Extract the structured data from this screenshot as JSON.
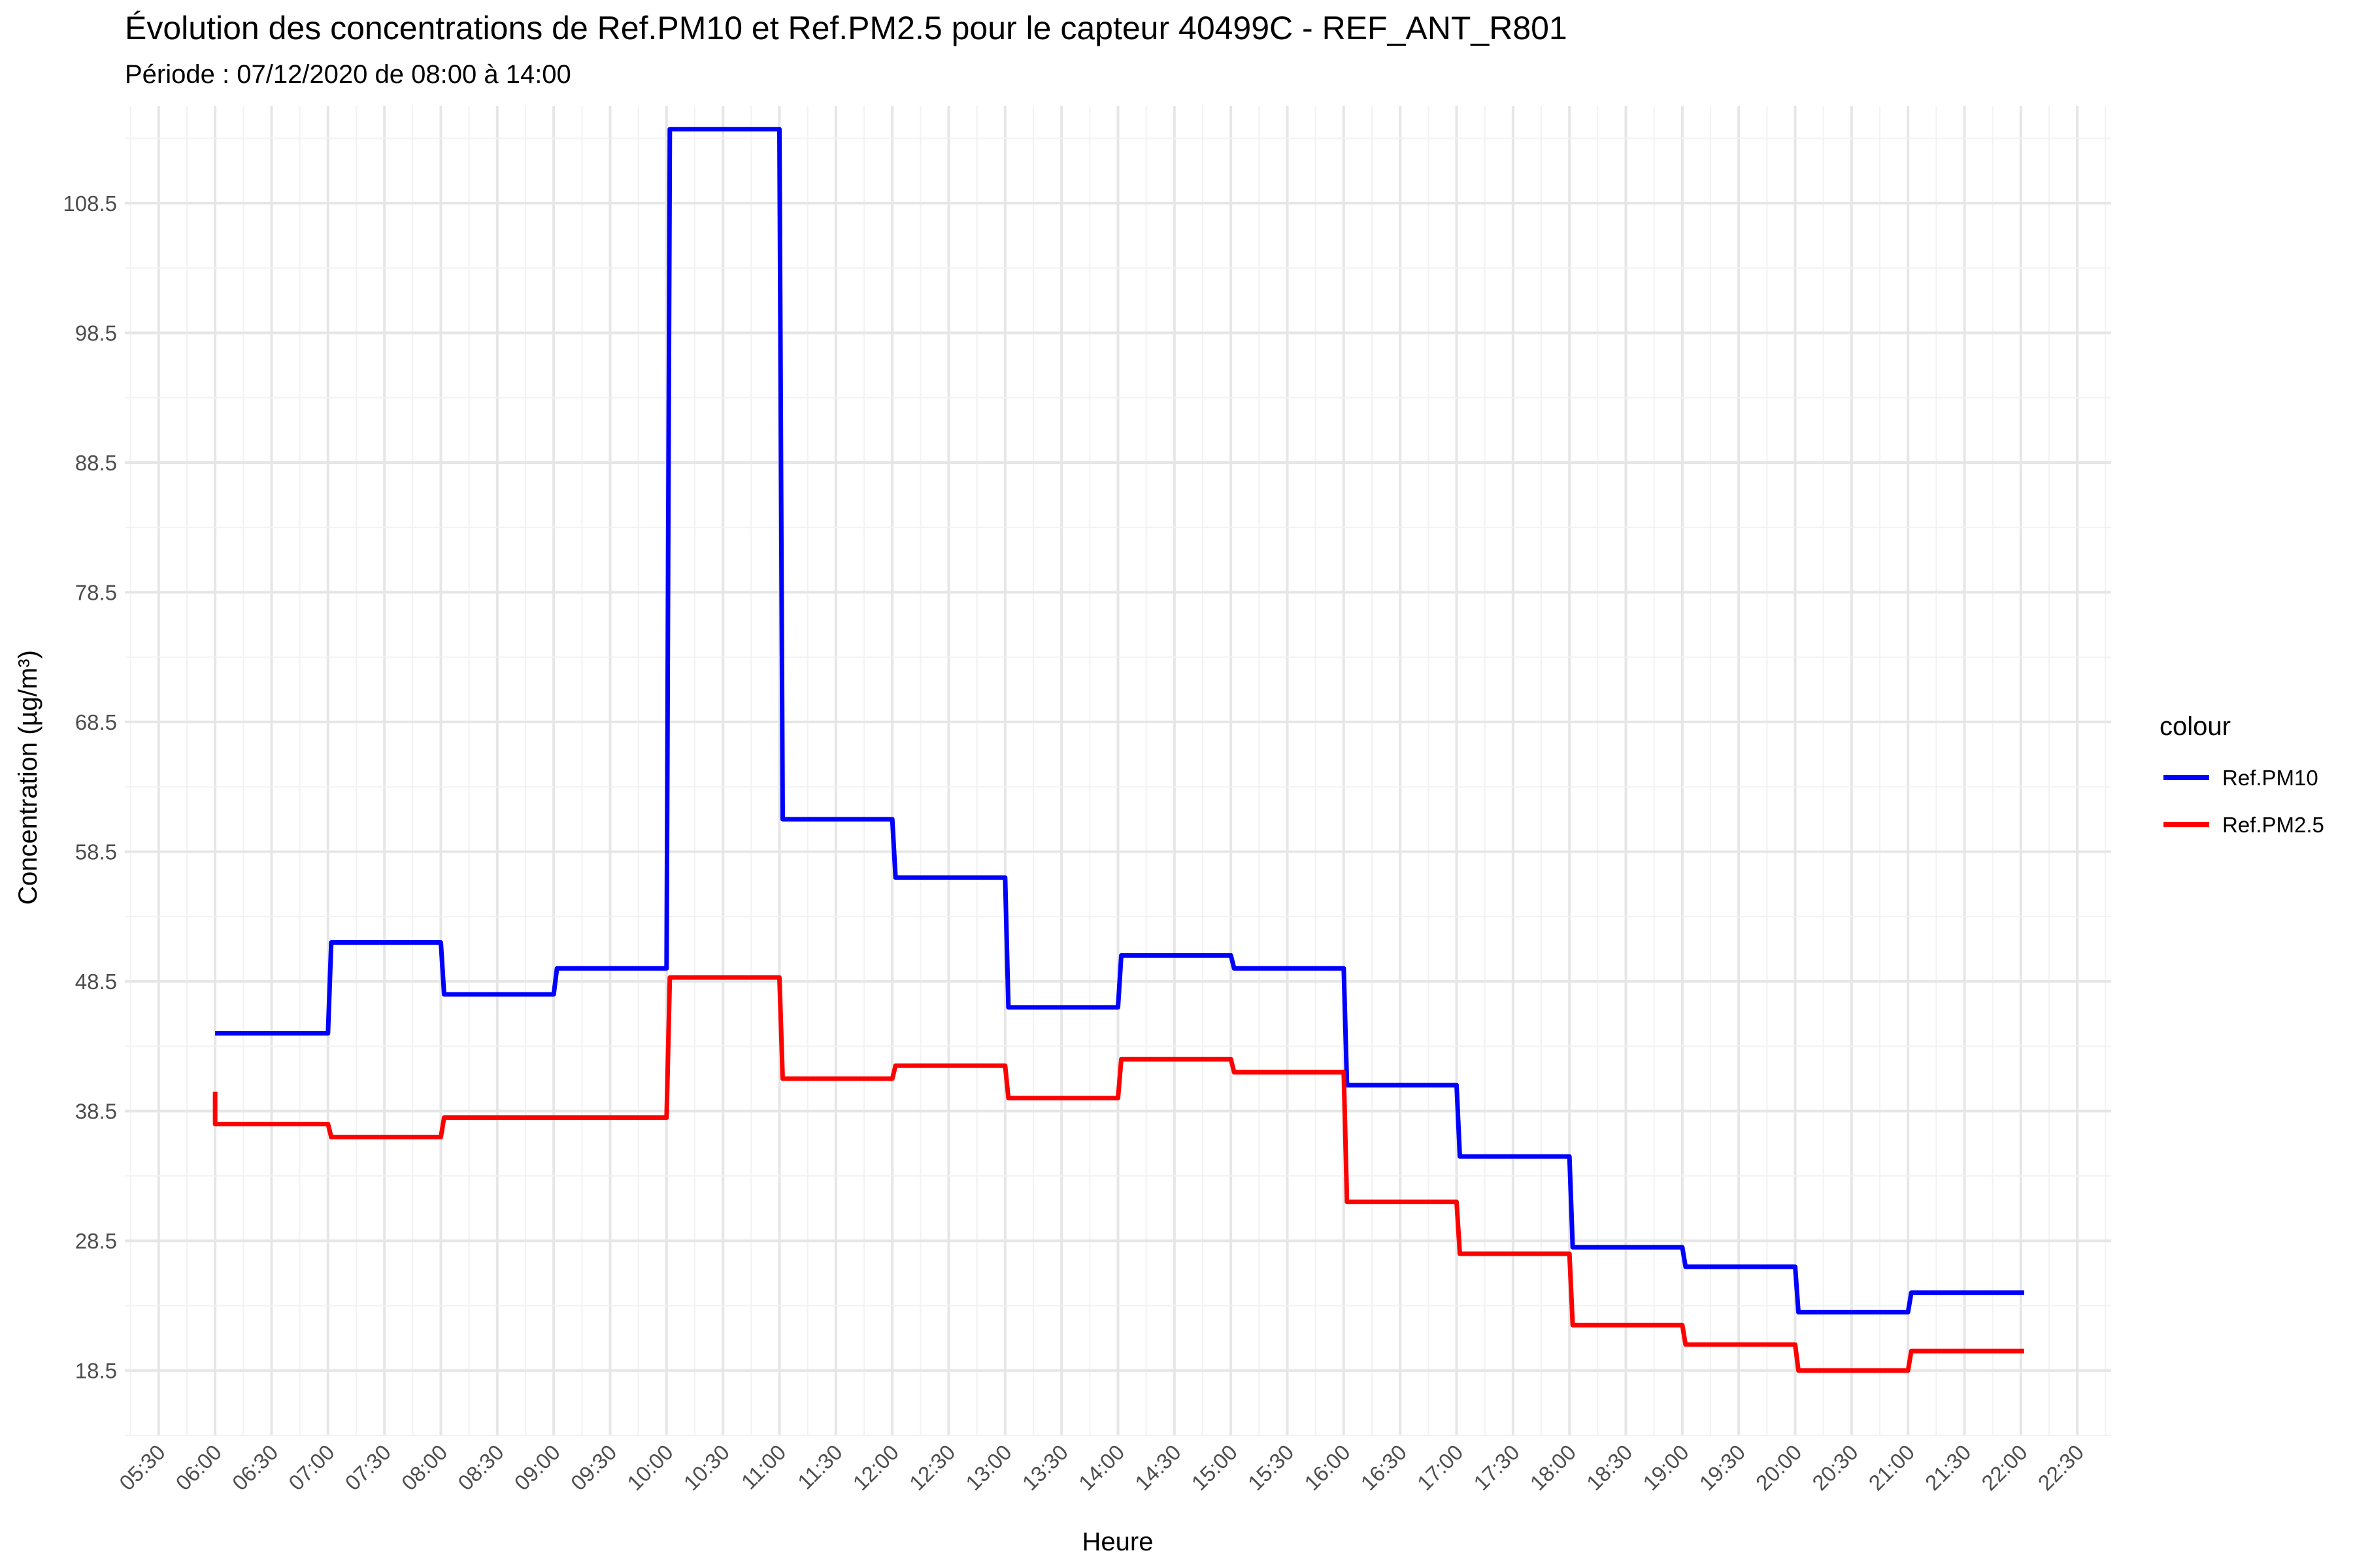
{
  "chart_data": {
    "type": "line",
    "step": true,
    "title": "Évolution des concentrations de Ref.PM10 et Ref.PM2.5 pour le capteur 40499C - REF_ANT_R801",
    "subtitle": "Période : 07/12/2020 de 08:00 à 14:00",
    "xlabel": "Heure",
    "ylabel": "Concentration (µg/m³)",
    "xlim": [
      "05:12",
      "22:48"
    ],
    "ylim": [
      13.5,
      116
    ],
    "x_ticks": [
      "05:30",
      "06:00",
      "06:30",
      "07:00",
      "07:30",
      "08:00",
      "08:30",
      "09:00",
      "09:30",
      "10:00",
      "10:30",
      "11:00",
      "11:30",
      "12:00",
      "12:30",
      "13:00",
      "13:30",
      "14:00",
      "14:30",
      "15:00",
      "15:30",
      "16:00",
      "16:30",
      "17:00",
      "17:30",
      "18:00",
      "18:30",
      "19:00",
      "19:30",
      "20:00",
      "20:30",
      "21:00",
      "21:30",
      "22:00",
      "22:30"
    ],
    "y_ticks": [
      "18.5",
      "28.5",
      "38.5",
      "48.5",
      "58.5",
      "68.5",
      "78.5",
      "88.5",
      "98.5",
      "108.5"
    ],
    "grid": true,
    "legend_title": "colour",
    "legend_position": "right",
    "x": [
      "06:00",
      "07:00",
      "08:00",
      "09:00",
      "10:00",
      "11:00",
      "12:00",
      "13:00",
      "14:00",
      "15:00",
      "16:00",
      "17:00",
      "18:00",
      "19:00",
      "20:00",
      "21:00",
      "22:00"
    ],
    "series": [
      {
        "name": "Ref.PM10",
        "color": "#0000ff",
        "values": [
          44.5,
          51.5,
          47.5,
          49.5,
          114.2,
          61.0,
          56.5,
          46.5,
          50.5,
          49.5,
          40.5,
          35.0,
          28.0,
          26.5,
          23.0,
          24.5,
          24.5
        ]
      },
      {
        "name": "Ref.PM2.5",
        "color": "#ff0000",
        "start_value": 40.0,
        "values": [
          37.5,
          36.5,
          38.0,
          38.0,
          48.8,
          41.0,
          42.0,
          39.5,
          42.5,
          41.5,
          31.5,
          27.5,
          22.0,
          20.5,
          18.5,
          20.0,
          20.0
        ]
      }
    ]
  }
}
